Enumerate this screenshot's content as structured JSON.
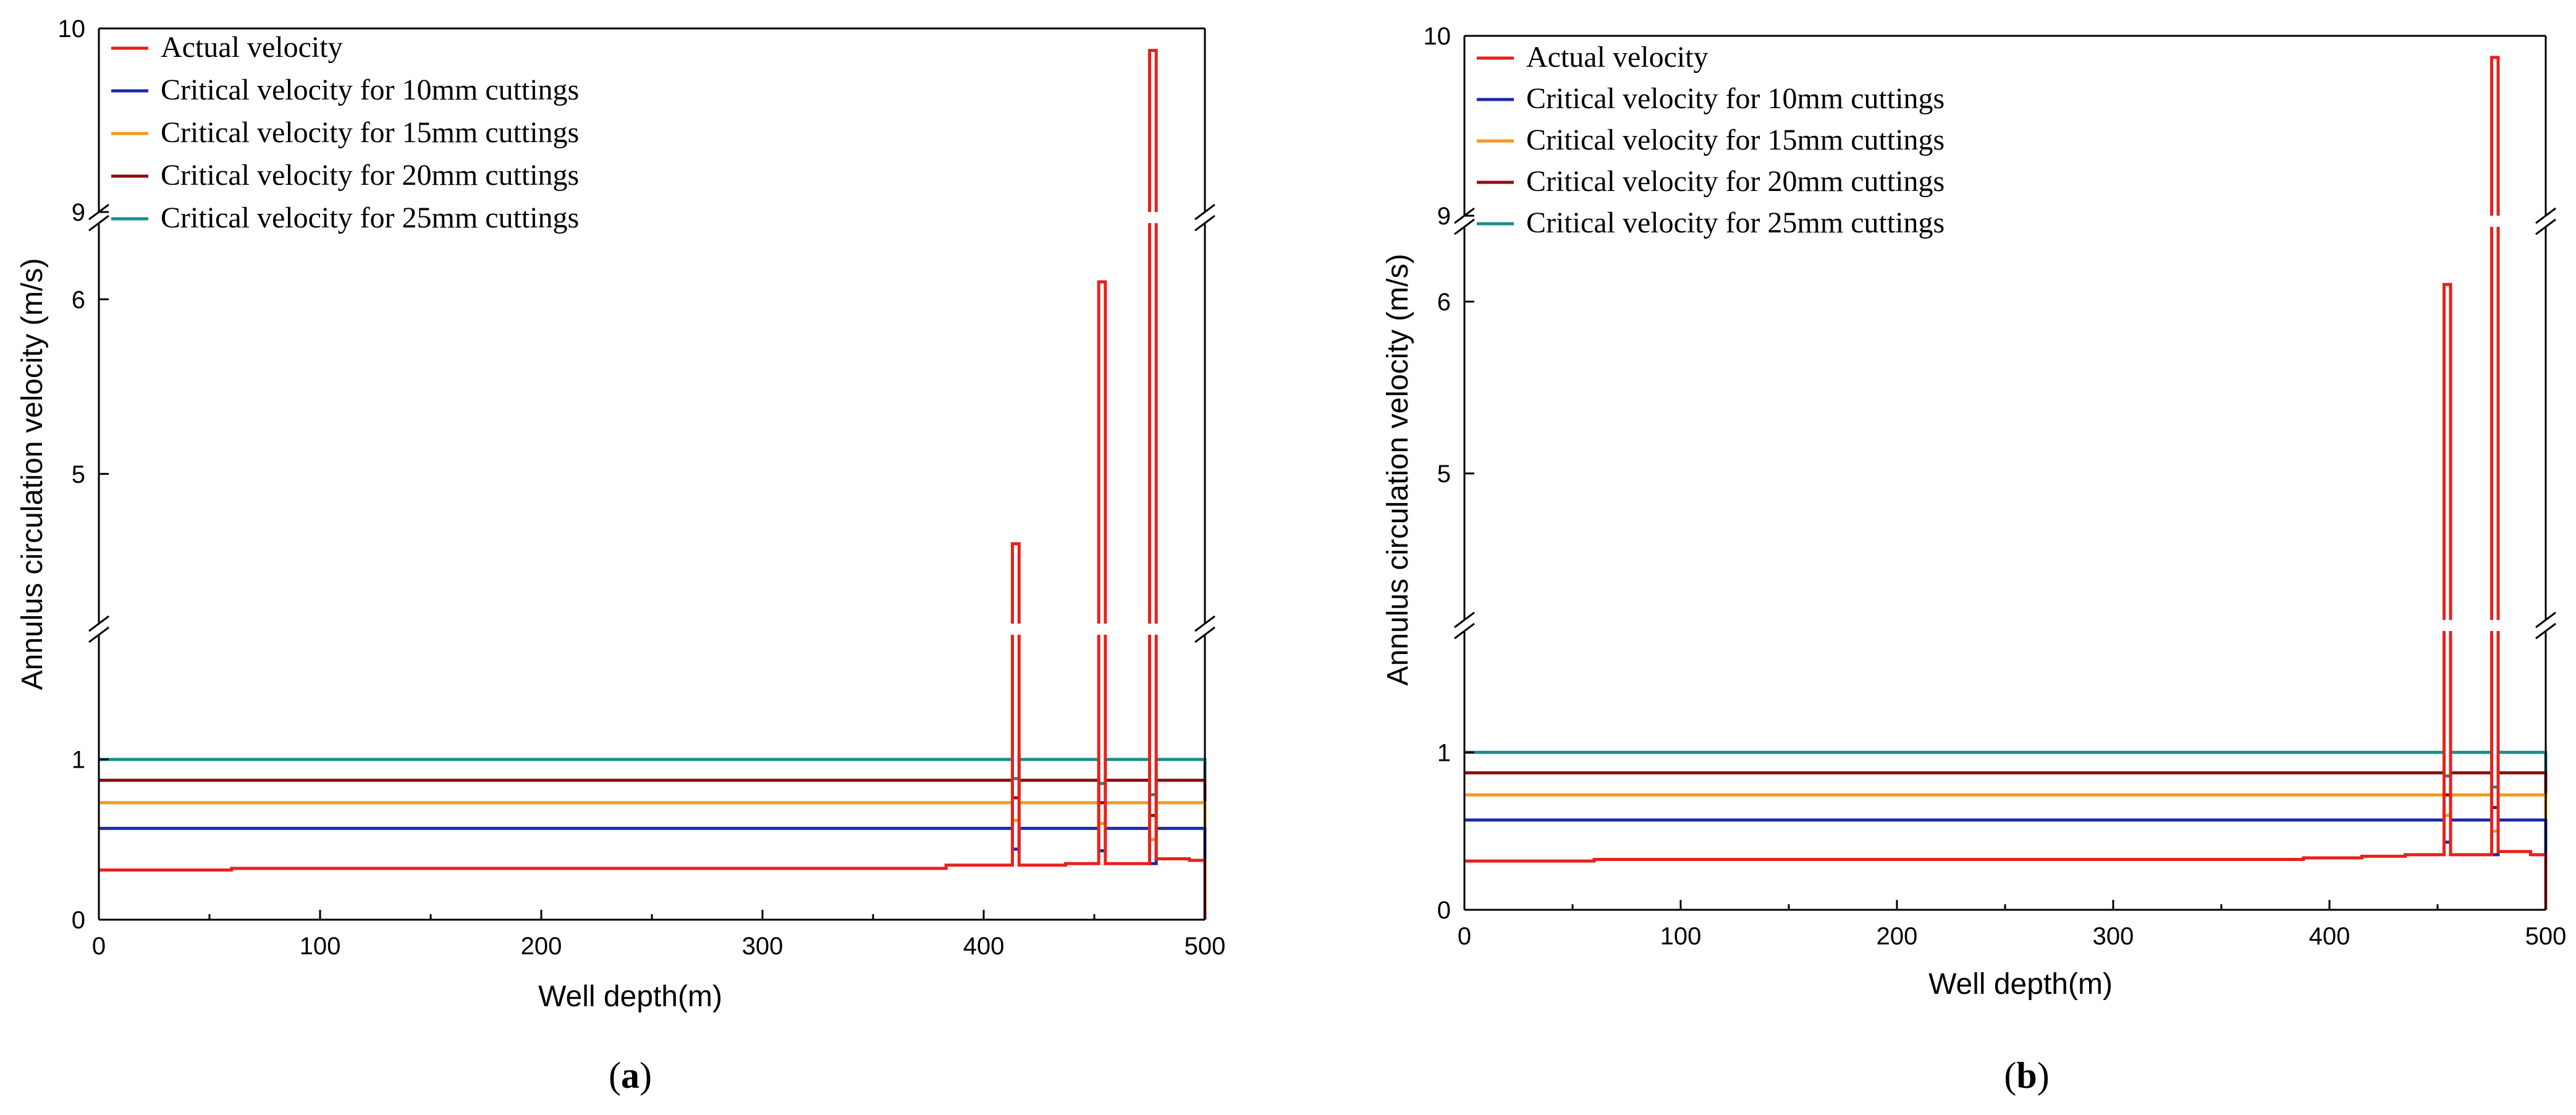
{
  "colors": {
    "actual": "#e8211c",
    "c10": "#1c2aa8",
    "c15": "#f59a1e",
    "c20": "#8b1111",
    "c25": "#1a8c8c",
    "axis": "#000000"
  },
  "chart_data": [
    {
      "type": "line",
      "panel_label": "a",
      "xlabel": "Well depth",
      "xlabel_unit": "(m)",
      "ylabel": "Annulus circulation velocity (m/s)",
      "xlim": [
        0,
        500
      ],
      "x_ticks": [
        0,
        100,
        200,
        300,
        400,
        500
      ],
      "y_segments": [
        {
          "range": [
            0,
            1.5
          ],
          "ticks": [
            0,
            1
          ]
        },
        {
          "range": [
            4.5,
            6.5
          ],
          "ticks": [
            5,
            6
          ]
        },
        {
          "range": [
            9,
            10
          ],
          "ticks": [
            9,
            10
          ]
        }
      ],
      "legend": {
        "position": "top-left"
      },
      "series": [
        {
          "name": "Actual velocity",
          "color_key": "actual",
          "points": [
            [
              0,
              0.31
            ],
            [
              60,
              0.31
            ],
            [
              60,
              0.32
            ],
            [
              383,
              0.32
            ],
            [
              383,
              0.34
            ],
            [
              413,
              0.34
            ],
            [
              413,
              4.6
            ],
            [
              416,
              4.6
            ],
            [
              416,
              0.34
            ],
            [
              437,
              0.34
            ],
            [
              437,
              0.35
            ],
            [
              452,
              0.35
            ],
            [
              452,
              6.1
            ],
            [
              455,
              6.1
            ],
            [
              455,
              0.35
            ],
            [
              475,
              0.35
            ],
            [
              475,
              9.88
            ],
            [
              478,
              9.88
            ],
            [
              478,
              0.38
            ],
            [
              493,
              0.38
            ],
            [
              493,
              0.37
            ],
            [
              500,
              0.37
            ],
            [
              500,
              0
            ]
          ]
        },
        {
          "name": "Critical velocity for 10mm cuttings",
          "color_key": "c10",
          "points": [
            [
              0,
              0.57
            ],
            [
              413,
              0.57
            ],
            [
              413,
              0.44
            ],
            [
              416,
              0.44
            ],
            [
              416,
              0.57
            ],
            [
              452,
              0.57
            ],
            [
              452,
              0.43
            ],
            [
              455,
              0.43
            ],
            [
              455,
              0.57
            ],
            [
              475,
              0.57
            ],
            [
              475,
              0.35
            ],
            [
              478,
              0.35
            ],
            [
              478,
              0.57
            ],
            [
              500,
              0.57
            ],
            [
              500,
              0
            ]
          ]
        },
        {
          "name": "Critical velocity for 15mm cuttings",
          "color_key": "c15",
          "points": [
            [
              0,
              0.73
            ],
            [
              413,
              0.73
            ],
            [
              413,
              0.62
            ],
            [
              416,
              0.62
            ],
            [
              416,
              0.73
            ],
            [
              452,
              0.73
            ],
            [
              452,
              0.6
            ],
            [
              455,
              0.6
            ],
            [
              455,
              0.73
            ],
            [
              475,
              0.73
            ],
            [
              475,
              0.5
            ],
            [
              478,
              0.5
            ],
            [
              478,
              0.73
            ],
            [
              500,
              0.73
            ],
            [
              500,
              0
            ]
          ]
        },
        {
          "name": "Critical velocity for 20mm cuttings",
          "color_key": "c20",
          "points": [
            [
              0,
              0.87
            ],
            [
              413,
              0.87
            ],
            [
              413,
              0.76
            ],
            [
              416,
              0.76
            ],
            [
              416,
              0.87
            ],
            [
              452,
              0.87
            ],
            [
              452,
              0.73
            ],
            [
              455,
              0.73
            ],
            [
              455,
              0.87
            ],
            [
              475,
              0.87
            ],
            [
              475,
              0.65
            ],
            [
              478,
              0.65
            ],
            [
              478,
              0.87
            ],
            [
              500,
              0.87
            ],
            [
              500,
              0
            ]
          ]
        },
        {
          "name": "Critical velocity for 25mm cuttings",
          "color_key": "c25",
          "points": [
            [
              0,
              1.0
            ],
            [
              413,
              1.0
            ],
            [
              413,
              0.88
            ],
            [
              416,
              0.88
            ],
            [
              416,
              1.0
            ],
            [
              452,
              1.0
            ],
            [
              452,
              0.85
            ],
            [
              455,
              0.85
            ],
            [
              455,
              1.0
            ],
            [
              475,
              1.0
            ],
            [
              475,
              0.78
            ],
            [
              478,
              0.78
            ],
            [
              478,
              1.0
            ],
            [
              500,
              1.0
            ],
            [
              500,
              0
            ]
          ]
        }
      ]
    },
    {
      "type": "line",
      "panel_label": "b",
      "xlabel": "Well depth",
      "xlabel_unit": "(m)",
      "ylabel": "Annulus circulation velocity (m/s)",
      "xlim": [
        0,
        500
      ],
      "x_ticks": [
        0,
        100,
        200,
        300,
        400,
        500
      ],
      "y_segments": [
        {
          "range": [
            0,
            1.5
          ],
          "ticks": [
            0,
            1
          ]
        },
        {
          "range": [
            4.5,
            6.5
          ],
          "ticks": [
            5,
            6
          ]
        },
        {
          "range": [
            9,
            10
          ],
          "ticks": [
            9,
            10
          ]
        }
      ],
      "legend": {
        "position": "top-left"
      },
      "series": [
        {
          "name": "Actual velocity",
          "color_key": "actual",
          "points": [
            [
              0,
              0.31
            ],
            [
              60,
              0.31
            ],
            [
              60,
              0.32
            ],
            [
              388,
              0.32
            ],
            [
              388,
              0.33
            ],
            [
              415,
              0.33
            ],
            [
              415,
              0.34
            ],
            [
              435,
              0.34
            ],
            [
              435,
              0.35
            ],
            [
              453,
              0.35
            ],
            [
              453,
              6.1
            ],
            [
              456,
              6.1
            ],
            [
              456,
              0.35
            ],
            [
              475,
              0.35
            ],
            [
              475,
              9.88
            ],
            [
              478,
              9.88
            ],
            [
              478,
              0.37
            ],
            [
              493,
              0.37
            ],
            [
              493,
              0.35
            ],
            [
              500,
              0.35
            ],
            [
              500,
              0
            ]
          ]
        },
        {
          "name": "Critical velocity for 10mm cuttings",
          "color_key": "c10",
          "points": [
            [
              0,
              0.57
            ],
            [
              453,
              0.57
            ],
            [
              453,
              0.43
            ],
            [
              456,
              0.43
            ],
            [
              456,
              0.57
            ],
            [
              475,
              0.57
            ],
            [
              475,
              0.35
            ],
            [
              478,
              0.35
            ],
            [
              478,
              0.57
            ],
            [
              500,
              0.57
            ],
            [
              500,
              0
            ]
          ]
        },
        {
          "name": "Critical velocity for 15mm cuttings",
          "color_key": "c15",
          "points": [
            [
              0,
              0.73
            ],
            [
              453,
              0.73
            ],
            [
              453,
              0.6
            ],
            [
              456,
              0.6
            ],
            [
              456,
              0.73
            ],
            [
              475,
              0.73
            ],
            [
              475,
              0.5
            ],
            [
              478,
              0.5
            ],
            [
              478,
              0.73
            ],
            [
              500,
              0.73
            ],
            [
              500,
              0
            ]
          ]
        },
        {
          "name": "Critical velocity for 20mm cuttings",
          "color_key": "c20",
          "points": [
            [
              0,
              0.87
            ],
            [
              453,
              0.87
            ],
            [
              453,
              0.73
            ],
            [
              456,
              0.73
            ],
            [
              456,
              0.87
            ],
            [
              475,
              0.87
            ],
            [
              475,
              0.65
            ],
            [
              478,
              0.65
            ],
            [
              478,
              0.87
            ],
            [
              500,
              0.87
            ],
            [
              500,
              0
            ]
          ]
        },
        {
          "name": "Critical velocity for 25mm cuttings",
          "color_key": "c25",
          "points": [
            [
              0,
              1.0
            ],
            [
              453,
              1.0
            ],
            [
              453,
              0.85
            ],
            [
              456,
              0.85
            ],
            [
              456,
              1.0
            ],
            [
              475,
              1.0
            ],
            [
              475,
              0.78
            ],
            [
              478,
              0.78
            ],
            [
              478,
              1.0
            ],
            [
              500,
              1.0
            ],
            [
              500,
              0
            ]
          ]
        }
      ]
    }
  ]
}
